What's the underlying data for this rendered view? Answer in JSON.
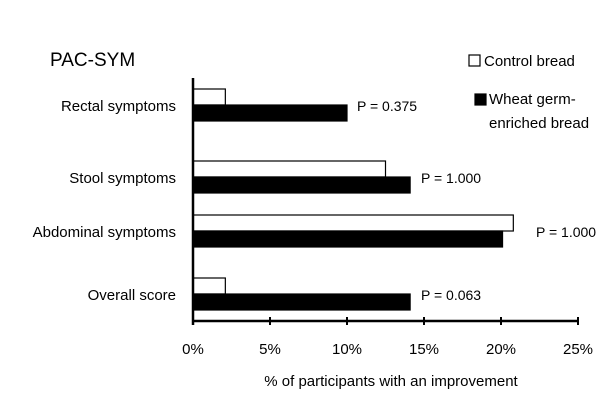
{
  "chart_data": {
    "type": "bar",
    "orientation": "horizontal",
    "title": "PAC-SYM",
    "xlabel": "% of participants with an improvement",
    "ylabel": "",
    "xlim": [
      0,
      25
    ],
    "x_ticks": [
      "0%",
      "5%",
      "10%",
      "15%",
      "20%",
      "25%"
    ],
    "x_tick_values": [
      0,
      5,
      10,
      15,
      20,
      25
    ],
    "grid": false,
    "legend_position": "top-right",
    "categories": [
      "Rectal symptoms",
      "Stool symptoms",
      "Abdominal symptoms",
      "Overall score"
    ],
    "series": [
      {
        "name": "Control bread",
        "color": "#ffffff",
        "values": [
          2.1,
          12.5,
          20.8,
          2.1
        ]
      },
      {
        "name": "Wheat germ-enriched bread",
        "legend_lines": [
          "Wheat germ-",
          "enriched bread"
        ],
        "color": "#000000",
        "values": [
          10.0,
          14.1,
          20.1,
          14.1
        ]
      }
    ],
    "annotations": [
      "P = 0.375",
      "P = 1.000",
      "P = 1.000",
      "P = 0.063"
    ]
  }
}
